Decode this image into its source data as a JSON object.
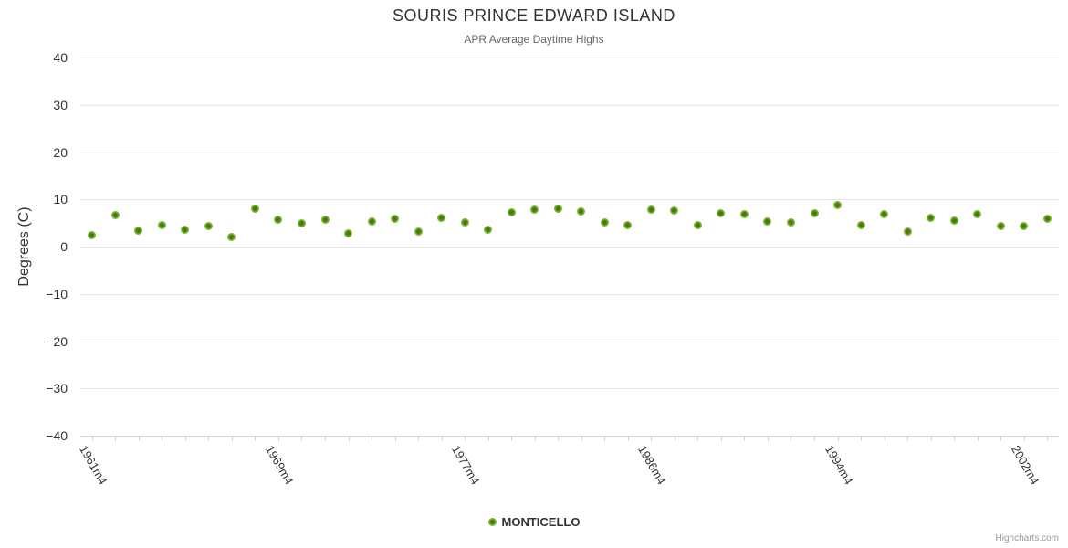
{
  "chart": {
    "title": "SOURIS PRINCE EDWARD ISLAND",
    "subtitle": "APR Average Daytime Highs",
    "credit": "Highcharts.com"
  },
  "legend": {
    "series_label": "MONTICELLO"
  },
  "colors": {
    "marker_outer": "#7cb82f",
    "marker_core": "#47780f",
    "grid": "#e6e6e6",
    "axis_line": "#ccd6eb",
    "title_text": "#333333",
    "subtitle_text": "#666666",
    "credit_text": "#999999"
  },
  "chart_data": {
    "type": "scatter",
    "title": "SOURIS PRINCE EDWARD ISLAND",
    "subtitle": "APR Average Daytime Highs",
    "xlabel": "",
    "ylabel": "Degrees (C)",
    "ylim": [
      -40,
      40
    ],
    "yticks": [
      40,
      30,
      20,
      10,
      0,
      -10,
      -20,
      -30,
      -40
    ],
    "grid": true,
    "legend_position": "bottom-center",
    "x_label_step": 8,
    "visible_x_labels": [
      "1961m4",
      "1969m4",
      "1977m4",
      "1986m4",
      "1994m4",
      "2002m4"
    ],
    "categories": [
      "1961m4",
      "1962m4",
      "1963m4",
      "1964m4",
      "1965m4",
      "1966m4",
      "1967m4",
      "1968m4",
      "1969m4",
      "1970m4",
      "1971m4",
      "1972m4",
      "1973m4",
      "1974m4",
      "1975m4",
      "1976m4",
      "1977m4",
      "1979m4",
      "1980m4",
      "1981m4",
      "1982m4",
      "1983m4",
      "1984m4",
      "1985m4",
      "1986m4",
      "1987m4",
      "1988m4",
      "1989m4",
      "1990m4",
      "1991m4",
      "1992m4",
      "1993m4",
      "1994m4",
      "1995m4",
      "1996m4",
      "1997m4",
      "1998m4",
      "1999m4",
      "2000m4",
      "2001m4",
      "2002m4",
      "2003m4"
    ],
    "series": [
      {
        "name": "MONTICELLO",
        "values": [
          2.4,
          6.7,
          3.4,
          4.5,
          3.6,
          4.3,
          2.0,
          8.0,
          5.7,
          4.9,
          5.7,
          2.8,
          5.3,
          5.8,
          3.2,
          6.1,
          5.1,
          3.6,
          7.2,
          7.8,
          8.0,
          7.4,
          5.1,
          4.5,
          7.8,
          7.6,
          4.5,
          7.1,
          6.9,
          5.3,
          5.1,
          7.1,
          8.8,
          4.5,
          6.9,
          3.2,
          6.1,
          5.5,
          6.9,
          4.3,
          4.3,
          5.9
        ]
      }
    ]
  }
}
